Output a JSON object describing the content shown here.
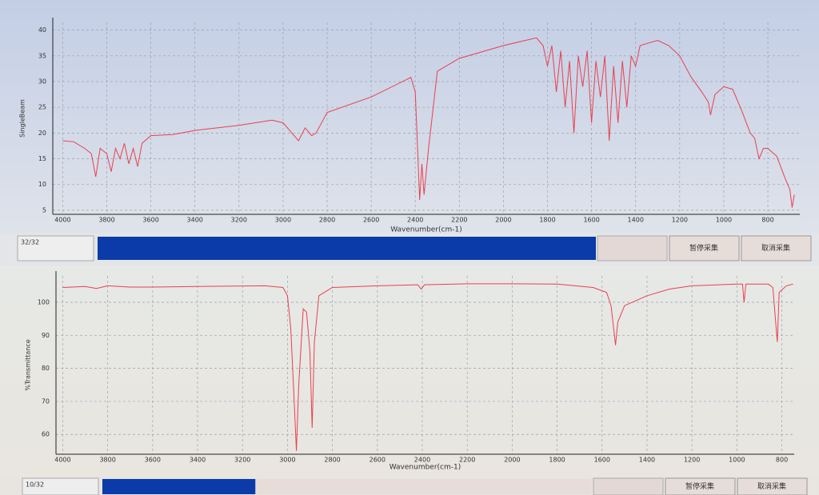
{
  "chart_data": [
    {
      "type": "line",
      "ylabel": "SingleBeam",
      "xlabel": "Wavenumber(cm-1)",
      "x": [
        4000,
        3950,
        3900,
        3870,
        3850,
        3830,
        3800,
        3780,
        3760,
        3740,
        3720,
        3700,
        3680,
        3660,
        3640,
        3600,
        3500,
        3400,
        3200,
        3050,
        3000,
        2960,
        2930,
        2900,
        2870,
        2850,
        2800,
        2600,
        2420,
        2400,
        2380,
        2370,
        2360,
        2340,
        2300,
        2200,
        2000,
        1900,
        1850,
        1820,
        1800,
        1780,
        1760,
        1740,
        1720,
        1700,
        1680,
        1660,
        1640,
        1620,
        1600,
        1580,
        1560,
        1540,
        1520,
        1500,
        1480,
        1460,
        1440,
        1420,
        1400,
        1380,
        1340,
        1300,
        1250,
        1200,
        1150,
        1100,
        1070,
        1060,
        1040,
        1000,
        960,
        920,
        880,
        860,
        840,
        820,
        800,
        760,
        720,
        700,
        690,
        680
      ],
      "series": [
        {
          "name": "SingleBeam",
          "color": "#e8404f",
          "values": [
            18.5,
            18.3,
            17,
            16,
            11.5,
            17,
            16,
            12.5,
            17,
            15,
            18,
            14,
            17,
            13.5,
            18,
            19.5,
            19.7,
            20.5,
            21.5,
            22.5,
            22,
            20,
            18.5,
            21,
            19.5,
            20,
            24,
            27,
            30.8,
            28,
            7,
            14,
            8,
            17,
            32,
            34.5,
            37,
            38,
            38.5,
            37,
            33,
            37,
            28,
            36,
            25,
            34,
            20,
            35,
            29,
            36,
            22,
            34,
            27,
            35,
            18.5,
            33,
            22,
            34,
            25,
            35,
            33,
            37,
            37.5,
            38,
            37,
            35,
            31,
            28,
            26,
            23.5,
            27.5,
            29,
            28.5,
            24.5,
            20,
            19,
            15,
            17,
            17,
            15.5,
            11,
            9,
            5.5,
            8
          ]
        }
      ],
      "xlim": [
        4045,
        655
      ],
      "ylim": [
        4.2,
        41.5
      ],
      "xticks": [
        4000,
        3800,
        3600,
        3400,
        3200,
        3000,
        2800,
        2600,
        2400,
        2200,
        2000,
        1800,
        1600,
        1400,
        1200,
        1000,
        800
      ],
      "yticks": [
        5,
        10,
        15,
        20,
        25,
        30,
        35,
        40
      ],
      "grid": true
    },
    {
      "type": "line",
      "ylabel": "%Transmittance",
      "xlabel": "Wavenumber(cm-1)",
      "x": [
        4000,
        3900,
        3850,
        3800,
        3700,
        3600,
        3400,
        3100,
        3020,
        3000,
        2985,
        2970,
        2960,
        2950,
        2930,
        2915,
        2900,
        2890,
        2880,
        2860,
        2800,
        2600,
        2420,
        2405,
        2390,
        2200,
        2000,
        1800,
        1640,
        1580,
        1560,
        1545,
        1540,
        1530,
        1500,
        1400,
        1300,
        1200,
        1000,
        975,
        968,
        960,
        860,
        840,
        825,
        820,
        812,
        780,
        750
      ],
      "series": [
        {
          "name": "%Transmittance",
          "color": "#e8404f",
          "values": [
            104.5,
            104.8,
            104.2,
            105,
            104.6,
            104.6,
            104.8,
            105,
            104.5,
            102,
            92,
            70,
            55,
            75,
            98,
            97,
            85,
            62,
            88,
            102,
            104.5,
            105,
            105.3,
            104,
            105.3,
            105.6,
            105.6,
            105.5,
            104.5,
            103,
            99,
            90,
            87,
            94,
            99,
            102,
            104,
            105,
            105.5,
            105.5,
            100,
            105.5,
            105.5,
            104.5,
            92,
            88,
            103,
            105,
            105.5
          ]
        }
      ],
      "xlim": [
        4030,
        745
      ],
      "ylim": [
        54,
        108
      ],
      "xticks": [
        4000,
        3800,
        3600,
        3400,
        3200,
        3000,
        2800,
        2600,
        2400,
        2200,
        2000,
        1800,
        1600,
        1400,
        1200,
        1000,
        800
      ],
      "yticks": [
        60,
        70,
        80,
        90,
        100
      ],
      "grid": true
    }
  ],
  "progress": [
    {
      "label": "32/32",
      "value": 32,
      "max": 32,
      "buttons": [
        "暂停采集",
        "取消采集"
      ]
    },
    {
      "label": "10/32",
      "value": 10,
      "max": 32,
      "buttons": [
        "暂停采集",
        "取消采集"
      ]
    }
  ]
}
